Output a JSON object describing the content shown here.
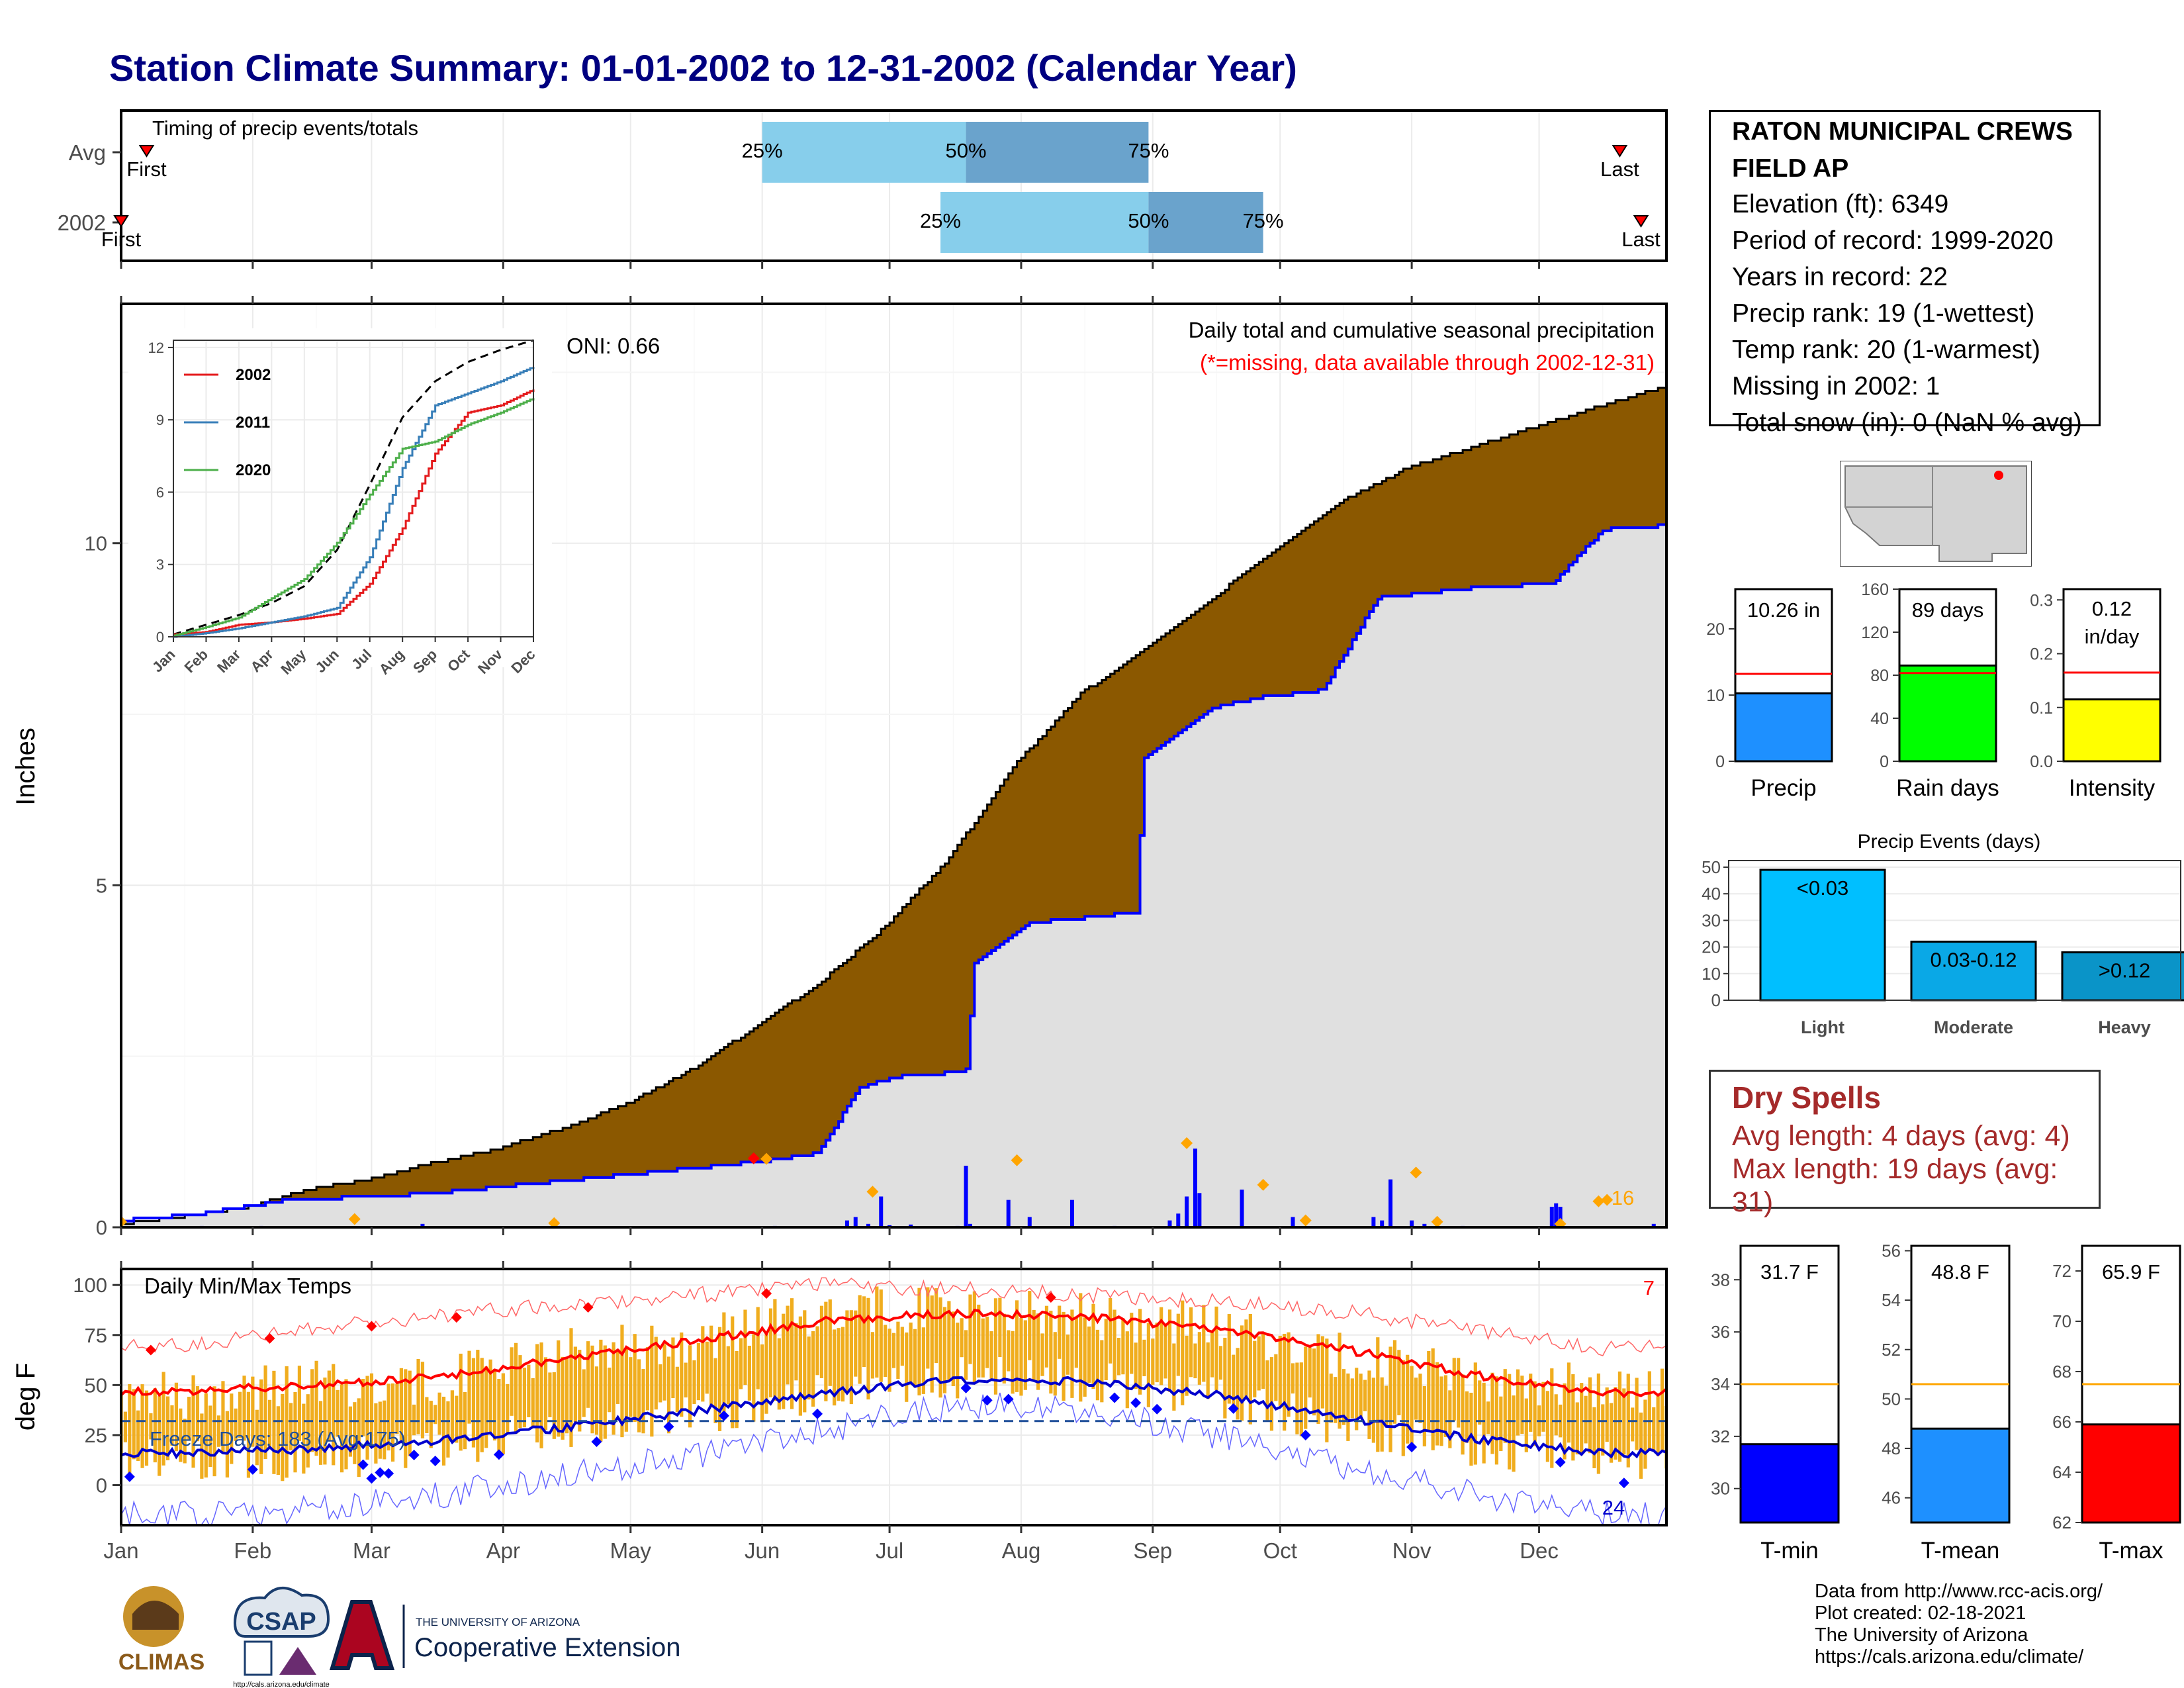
{
  "page": {
    "title": "Station Climate Summary: 01-01-2002 to 12-31-2002 (Calendar Year)"
  },
  "colors": {
    "title": "#000080",
    "cumulative_avg_fill": "#8B5800",
    "cumulative_obs_fill": "#e0e0e0",
    "cumulative_obs_line": "#0000ff",
    "daily_precip_bar": "#0000ff",
    "max_event_marker": "#FFA500",
    "timing_light": "#87CEEB",
    "timing_dark": "#6AA3CC",
    "temp_range_bar": "#f0ad1e",
    "tmax_line": "#ff0000",
    "tmin_line": "#0000cc",
    "dry_spells_text": "#a52a2a"
  },
  "timing_panel": {
    "title": "Timing of precip events/totals",
    "rows": [
      {
        "label": "Avg",
        "first_label": "First",
        "last_label": "Last",
        "p25_label": "25%",
        "p50_label": "50%",
        "p75_label": "75%"
      },
      {
        "label": "2002",
        "first_label": "First",
        "last_label": "Last",
        "p25_label": "25%",
        "p50_label": "50%",
        "p75_label": "75%"
      }
    ]
  },
  "precip_panel": {
    "ylabel": "Inches",
    "oni_label": "ONI: 0.66",
    "legend_line1": "Daily total and cumulative seasonal precipitation",
    "legend_line2": "(*=missing, data available through 2002-12-31)",
    "max_events_count": "16",
    "y_ticks": [
      "0",
      "5",
      "10"
    ]
  },
  "inset": {
    "series": [
      {
        "name": "2002",
        "color": "#e41a1c"
      },
      {
        "name": "2011",
        "color": "#377eb8"
      },
      {
        "name": "2020",
        "color": "#4daf4a"
      }
    ],
    "y_ticks": [
      "0",
      "3",
      "6",
      "9",
      "12"
    ],
    "x_ticks": [
      "Jan",
      "Feb",
      "Mar",
      "Apr",
      "May",
      "Jun",
      "Jul",
      "Aug",
      "Sep",
      "Oct",
      "Nov",
      "Dec"
    ]
  },
  "temp_panel": {
    "title": "Daily Min/Max Temps",
    "ylabel": "deg F",
    "freeze_label": "Freeze Days: 183 (Avg:175)",
    "record_high_count": "7",
    "record_low_count": "24",
    "y_ticks": [
      "0",
      "25",
      "50",
      "75",
      "100"
    ]
  },
  "months": [
    "Jan",
    "Feb",
    "Mar",
    "Apr",
    "May",
    "Jun",
    "Jul",
    "Aug",
    "Sep",
    "Oct",
    "Nov",
    "Dec"
  ],
  "station": {
    "name_line1": "RATON MUNICIPAL CREWS",
    "name_line2": "FIELD AP",
    "elevation": "Elevation (ft): 6349",
    "period": "Period of record: 1999-2020",
    "years": "Years in record: 22",
    "precip_rank": "Precip rank: 19 (1-wettest)",
    "temp_rank": "Temp rank: 20 (1-warmest)",
    "missing": "Missing in 2002: 1",
    "snow": "Total snow (in): 0 (NaN % avg)"
  },
  "summary_bars": [
    {
      "label": "Precip",
      "value_label": "10.26 in",
      "value": 10.26,
      "avg": 13.2,
      "ymax": 26,
      "ticks": [
        "0",
        "10",
        "20"
      ],
      "tick_values": [
        0,
        10,
        20
      ],
      "color": "#1E90FF"
    },
    {
      "label": "Rain days",
      "value_label": "89 days",
      "value": 89,
      "avg": 82,
      "ymax": 160,
      "ticks": [
        "0",
        "40",
        "80",
        "120",
        "160"
      ],
      "tick_values": [
        0,
        40,
        80,
        120,
        160
      ],
      "color": "#00ff00"
    },
    {
      "label": "Intensity",
      "value_label": "0.12 in/day",
      "value": 0.115,
      "avg": 0.165,
      "ymax": 0.32,
      "ticks": [
        "0.0",
        "0.1",
        "0.2",
        "0.3"
      ],
      "tick_values": [
        0,
        0.1,
        0.2,
        0.3
      ],
      "color": "#ffff00"
    }
  ],
  "precip_events": {
    "title": "Precip Events (days)",
    "categories": [
      "Light",
      "Moderate",
      "Heavy"
    ],
    "bar_labels": [
      "<0.03",
      "0.03-0.12",
      ">0.12"
    ],
    "values": [
      49,
      22,
      18
    ],
    "colors": [
      "#00BFFF",
      "#0aa8e6",
      "#0a94c8"
    ],
    "y_ticks": [
      "0",
      "10",
      "20",
      "30",
      "40",
      "50"
    ]
  },
  "dry_spells": {
    "title": "Dry Spells",
    "avg_length": "Avg length: 4 days (avg: 4)",
    "max_length": "Max length: 19 days (avg: 31)"
  },
  "temp_bars": [
    {
      "label": "T-min",
      "value_label": "31.7 F",
      "value": 31.7,
      "avg": 34.0,
      "ymin": 28.7,
      "ymax": 39.3,
      "ticks": [
        "30",
        "32",
        "34",
        "36",
        "38"
      ],
      "tick_values": [
        30,
        32,
        34,
        36,
        38
      ],
      "color": "#0000ff"
    },
    {
      "label": "T-mean",
      "value_label": "48.8 F",
      "value": 48.8,
      "avg": 50.6,
      "ymin": 45.0,
      "ymax": 56.2,
      "ticks": [
        "46",
        "48",
        "50",
        "52",
        "54",
        "56"
      ],
      "tick_values": [
        46,
        48,
        50,
        52,
        54,
        56
      ],
      "color": "#1E90FF"
    },
    {
      "label": "T-max",
      "value_label": "65.9 F",
      "value": 65.9,
      "avg": 67.5,
      "ymin": 62.0,
      "ymax": 73.0,
      "ticks": [
        "62",
        "64",
        "66",
        "68",
        "70",
        "72"
      ],
      "tick_values": [
        62,
        64,
        66,
        68,
        70,
        72
      ],
      "color": "#ff0000"
    }
  ],
  "credits": {
    "line1": "Data from http://www.rcc-acis.org/",
    "line2": "Plot created: 02-18-2021",
    "line3": "The University of Arizona",
    "line4": "https://cals.arizona.edu/climate/"
  },
  "logos": {
    "climas": "CLIMAS",
    "csap": "CSAP",
    "csap_url": "http://cals.arizona.edu/climate",
    "ua_small": "THE UNIVERSITY OF ARIZONA",
    "ua_large": "Cooperative Extension"
  },
  "chart_data": [
    {
      "type": "bar",
      "title": "Timing of precip events/totals",
      "categories": [
        "Avg",
        "2002"
      ],
      "series": [
        {
          "name": "First",
          "values": [
            "Jan 07",
            "Jan 01"
          ]
        },
        {
          "name": "25%",
          "values": [
            "Jun 01",
            "Jul 13"
          ]
        },
        {
          "name": "50%",
          "values": [
            "Jul 19",
            "Aug 31"
          ]
        },
        {
          "name": "75%",
          "values": [
            "Aug 31",
            "Sep 27"
          ]
        },
        {
          "name": "Last",
          "values": [
            "Dec 20",
            "Dec 25"
          ]
        }
      ]
    },
    {
      "type": "area",
      "title": "Daily total and cumulative seasonal precipitation",
      "ylabel": "Inches",
      "ylim": [
        0,
        13.5
      ],
      "x_label_months": [
        "Jan",
        "Feb",
        "Mar",
        "Apr",
        "May",
        "Jun",
        "Jul",
        "Aug",
        "Sep",
        "Oct",
        "Nov",
        "Dec"
      ],
      "cumulative_avg_doy": [
        1,
        15,
        31,
        45,
        59,
        75,
        90,
        105,
        120,
        135,
        151,
        166,
        181,
        196,
        212,
        227,
        243,
        258,
        273,
        288,
        304,
        319,
        334,
        349,
        365
      ],
      "cumulative_avg": [
        0.05,
        0.15,
        0.3,
        0.55,
        0.7,
        0.95,
        1.15,
        1.45,
        1.8,
        2.3,
        2.95,
        3.6,
        4.4,
        5.4,
        6.8,
        7.8,
        8.5,
        9.2,
        9.9,
        10.6,
        11.1,
        11.4,
        11.7,
        12.0,
        12.3
      ],
      "cumulative_2002_doy": [
        1,
        20,
        40,
        60,
        75,
        95,
        150,
        165,
        175,
        184,
        195,
        200,
        202,
        215,
        240,
        242,
        258,
        270,
        284,
        297,
        320,
        335,
        338,
        350,
        365
      ],
      "cumulative_2002": [
        0.1,
        0.2,
        0.4,
        0.45,
        0.5,
        0.62,
        0.95,
        1.08,
        2.05,
        2.2,
        2.25,
        2.3,
        3.85,
        4.45,
        4.6,
        6.85,
        7.6,
        7.75,
        7.85,
        9.2,
        9.35,
        9.4,
        9.4,
        10.2,
        10.26
      ],
      "daily_2002_doy": [
        1,
        20,
        34,
        72,
        103,
        104,
        155,
        172,
        174,
        177,
        180,
        182,
        187,
        198,
        200,
        201,
        210,
        215,
        225,
        235,
        248,
        250,
        252,
        254,
        255,
        265,
        277,
        296,
        298,
        300,
        305,
        308,
        317,
        338,
        339,
        340,
        362
      ],
      "daily_2002": [
        0.03,
        0.02,
        0.02,
        0.05,
        0.04,
        0.02,
        0.02,
        0.1,
        0.15,
        0.05,
        0.45,
        0.03,
        0.04,
        0.02,
        0.9,
        0.05,
        0.4,
        0.15,
        0.4,
        0.02,
        0.1,
        0.2,
        0.45,
        1.15,
        0.5,
        0.55,
        0.15,
        0.15,
        0.1,
        0.7,
        0.1,
        0.05,
        0.02,
        0.3,
        0.35,
        0.3,
        0.05
      ],
      "record_event_doy": [
        1,
        56,
        103,
        153,
        178,
        212,
        252,
        270,
        280,
        306,
        311,
        340,
        349,
        351
      ],
      "record_event_in": [
        0.08,
        0.12,
        0.06,
        1.0,
        0.52,
        0.98,
        1.23,
        0.62,
        0.1,
        0.8,
        0.08,
        0.05,
        0.38,
        0.4
      ],
      "missing_day_doy": [
        150
      ],
      "oni": 0.66
    },
    {
      "type": "line",
      "title": "",
      "x": [
        "Jan",
        "Feb",
        "Mar",
        "Apr",
        "May",
        "Jun",
        "Jul",
        "Aug",
        "Sep",
        "Oct",
        "Nov",
        "Dec"
      ],
      "ylim": [
        0,
        12.3
      ],
      "series": [
        {
          "name": "",
          "values": [
            0.1,
            0.5,
            0.9,
            1.4,
            2.1,
            3.6,
            6.3,
            9.1,
            10.6,
            11.4,
            11.9,
            12.3
          ]
        },
        {
          "name": "2002",
          "values": [
            0.1,
            0.2,
            0.5,
            0.6,
            0.75,
            0.95,
            2.2,
            4.5,
            7.6,
            9.3,
            9.6,
            10.26
          ]
        },
        {
          "name": "2011",
          "values": [
            0.0,
            0.15,
            0.35,
            0.6,
            0.85,
            1.2,
            3.3,
            7.0,
            9.6,
            10.1,
            10.6,
            11.2
          ]
        },
        {
          "name": "2020",
          "values": [
            0.05,
            0.4,
            0.8,
            1.6,
            2.4,
            3.9,
            5.9,
            7.8,
            8.1,
            8.8,
            9.3,
            9.9
          ]
        }
      ]
    },
    {
      "type": "bar",
      "title": "Daily Min/Max Temps",
      "ylabel": "deg F",
      "ylim": [
        -20,
        108
      ],
      "months": [
        "Jan",
        "Feb",
        "Mar",
        "Apr",
        "May",
        "Jun",
        "Jul",
        "Aug",
        "Sep",
        "Oct",
        "Nov",
        "Dec"
      ],
      "avg_tmax": [
        47,
        50,
        54,
        63,
        72,
        82,
        86,
        84,
        78,
        68,
        55,
        46
      ],
      "avg_tmin": [
        16,
        18,
        22,
        29,
        37,
        46,
        53,
        52,
        45,
        34,
        23,
        16
      ],
      "obs_tmax": [
        45,
        51,
        52,
        67,
        71,
        88,
        87,
        84,
        79,
        65,
        54,
        49
      ],
      "obs_tmin": [
        14,
        12,
        20,
        28,
        35,
        48,
        54,
        52,
        44,
        30,
        20,
        12
      ],
      "record_high_max": [
        70,
        78,
        85,
        90,
        95,
        100,
        98,
        95,
        92,
        87,
        77,
        68
      ],
      "record_low_min": [
        -15,
        -12,
        -5,
        5,
        15,
        28,
        40,
        38,
        25,
        10,
        -5,
        -15
      ],
      "freeze_threshold_f": 32,
      "freeze_days": 183,
      "freeze_days_avg": 175,
      "record_highs": 7,
      "record_lows": 24
    },
    {
      "type": "bar",
      "title": "Precip Events (days)",
      "categories": [
        "Light",
        "Moderate",
        "Heavy"
      ],
      "values": [
        49,
        22,
        18
      ],
      "ylim": [
        0,
        50
      ]
    }
  ]
}
